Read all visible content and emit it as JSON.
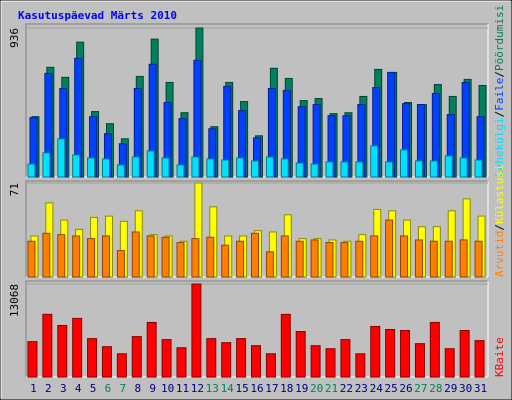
{
  "chart_data": [
    {
      "type": "bar",
      "title": "Kasutuspäevad Märts 2010",
      "ylim": [
        0,
        936
      ],
      "yticks": [
        936
      ],
      "legend_separator": "/",
      "series": [
        {
          "name": "Pöördumisi",
          "color": "#00805c",
          "values": [
            379,
            689,
            626,
            847,
            411,
            335,
            240,
            632,
            866,
            594,
            404,
            936,
            316,
            594,
            474,
            259,
            683,
            619,
            480,
            493,
            398,
            404,
            506,
            676,
            657,
            468,
            455,
            581,
            506,
            613,
            575
          ]
        },
        {
          "name": "Faile",
          "color": "#0040ff",
          "values": [
            373,
            651,
            556,
            746,
            379,
            272,
            209,
            556,
            708,
            468,
            367,
            733,
            303,
            569,
            417,
            246,
            556,
            544,
            442,
            455,
            385,
            385,
            455,
            562,
            657,
            461,
            455,
            525,
            392,
            594,
            379
          ]
        },
        {
          "name": "Lehekülgi",
          "color": "#00e0ff",
          "values": [
            82,
            152,
            240,
            139,
            120,
            114,
            76,
            126,
            164,
            120,
            76,
            126,
            114,
            107,
            120,
            101,
            126,
            114,
            88,
            82,
            95,
            95,
            95,
            196,
            95,
            171,
            101,
            101,
            133,
            120,
            107
          ]
        }
      ]
    },
    {
      "type": "bar",
      "ylim": [
        0,
        71
      ],
      "yticks": [
        71
      ],
      "legend_separator": "/",
      "series": [
        {
          "name": "Külastusi",
          "color": "#ffff00",
          "values": [
            31,
            56,
            43,
            36,
            45,
            46,
            42,
            50,
            32,
            31,
            27,
            71,
            53,
            31,
            31,
            35,
            34,
            47,
            29,
            29,
            28,
            27,
            32,
            51,
            50,
            43,
            38,
            38,
            50,
            59,
            46
          ]
        },
        {
          "name": "Arvutid",
          "color": "#ff8000",
          "values": [
            27,
            33,
            32,
            31,
            29,
            31,
            20,
            34,
            31,
            30,
            26,
            29,
            30,
            24,
            27,
            33,
            19,
            31,
            27,
            28,
            26,
            26,
            27,
            31,
            43,
            31,
            28,
            27,
            27,
            28,
            27
          ]
        }
      ]
    },
    {
      "type": "bar",
      "ylim": [
        0,
        13068
      ],
      "yticks": [
        13068
      ],
      "categories": [
        "1",
        "2",
        "3",
        "4",
        "5",
        "6",
        "7",
        "8",
        "9",
        "10",
        "11",
        "12",
        "13",
        "14",
        "15",
        "16",
        "17",
        "18",
        "19",
        "20",
        "21",
        "22",
        "23",
        "24",
        "25",
        "26",
        "27",
        "28",
        "29",
        "30",
        "31"
      ],
      "category_colors": [
        "#000080",
        "#000080",
        "#000080",
        "#000080",
        "#000080",
        "#008060",
        "#008060",
        "#000080",
        "#000080",
        "#000080",
        "#000080",
        "#000080",
        "#008060",
        "#008060",
        "#000080",
        "#000080",
        "#000080",
        "#000080",
        "#000080",
        "#008060",
        "#008060",
        "#000080",
        "#000080",
        "#000080",
        "#000080",
        "#000080",
        "#008060",
        "#008060",
        "#000080",
        "#000080",
        "#000080"
      ],
      "series": [
        {
          "name": "KBaite",
          "color": "#ff0000",
          "values": [
            4970,
            8804,
            7242,
            8236,
            5396,
            4260,
            3266,
            5680,
            7668,
            5254,
            4118,
            13068,
            5396,
            4828,
            5396,
            4402,
            3266,
            8804,
            6390,
            4402,
            3976,
            5254,
            3266,
            7100,
            6674,
            6532,
            4686,
            7668,
            3976,
            6532,
            5112
          ]
        }
      ]
    }
  ]
}
